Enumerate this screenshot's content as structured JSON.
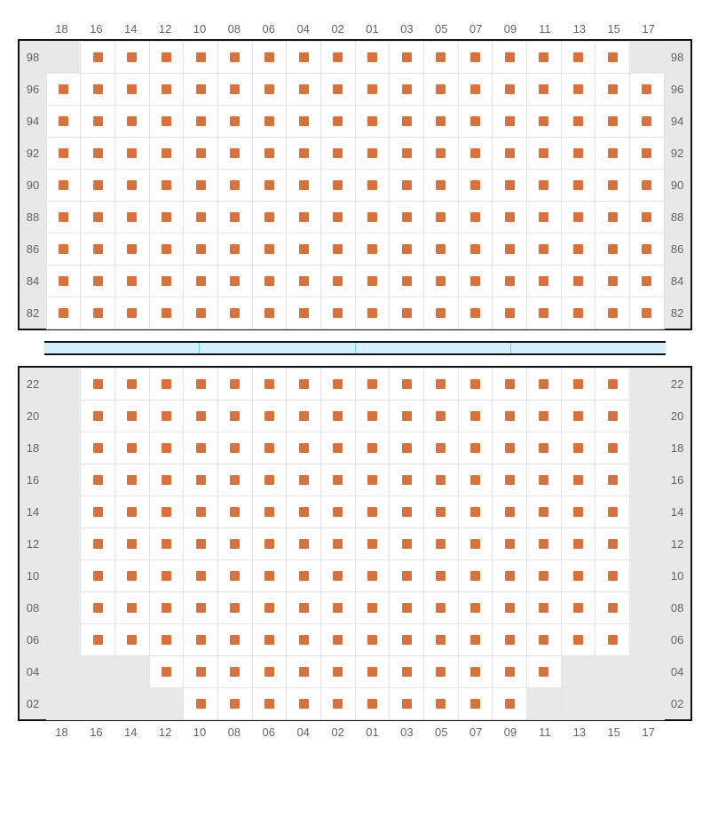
{
  "meta": {
    "type": "seating-chart",
    "columns": 18,
    "marker_color": "#d7713e",
    "filled_bg": "#ffffff",
    "empty_bg": "#e8e8e8",
    "border_color": "#e5e5e5",
    "outer_border_color": "#111111",
    "label_color": "#636363",
    "label_fontsize": 13,
    "divider_bg": "#d4f0fb",
    "divider_segments": 4
  },
  "column_labels": [
    "18",
    "16",
    "14",
    "12",
    "10",
    "08",
    "06",
    "04",
    "02",
    "01",
    "03",
    "05",
    "07",
    "09",
    "11",
    "13",
    "15",
    "17"
  ],
  "top_section": {
    "row_labels": [
      "98",
      "96",
      "94",
      "92",
      "90",
      "88",
      "86",
      "84",
      "82"
    ],
    "seats": [
      [
        0,
        1,
        1,
        1,
        1,
        1,
        1,
        1,
        1,
        1,
        1,
        1,
        1,
        1,
        1,
        1,
        1,
        0
      ],
      [
        1,
        1,
        1,
        1,
        1,
        1,
        1,
        1,
        1,
        1,
        1,
        1,
        1,
        1,
        1,
        1,
        1,
        1
      ],
      [
        1,
        1,
        1,
        1,
        1,
        1,
        1,
        1,
        1,
        1,
        1,
        1,
        1,
        1,
        1,
        1,
        1,
        1
      ],
      [
        1,
        1,
        1,
        1,
        1,
        1,
        1,
        1,
        1,
        1,
        1,
        1,
        1,
        1,
        1,
        1,
        1,
        1
      ],
      [
        1,
        1,
        1,
        1,
        1,
        1,
        1,
        1,
        1,
        1,
        1,
        1,
        1,
        1,
        1,
        1,
        1,
        1
      ],
      [
        1,
        1,
        1,
        1,
        1,
        1,
        1,
        1,
        1,
        1,
        1,
        1,
        1,
        1,
        1,
        1,
        1,
        1
      ],
      [
        1,
        1,
        1,
        1,
        1,
        1,
        1,
        1,
        1,
        1,
        1,
        1,
        1,
        1,
        1,
        1,
        1,
        1
      ],
      [
        1,
        1,
        1,
        1,
        1,
        1,
        1,
        1,
        1,
        1,
        1,
        1,
        1,
        1,
        1,
        1,
        1,
        1
      ],
      [
        1,
        1,
        1,
        1,
        1,
        1,
        1,
        1,
        1,
        1,
        1,
        1,
        1,
        1,
        1,
        1,
        1,
        1
      ]
    ]
  },
  "bottom_section": {
    "row_labels": [
      "22",
      "20",
      "18",
      "16",
      "14",
      "12",
      "10",
      "08",
      "06",
      "04",
      "02"
    ],
    "seats": [
      [
        0,
        1,
        1,
        1,
        1,
        1,
        1,
        1,
        1,
        1,
        1,
        1,
        1,
        1,
        1,
        1,
        1,
        0
      ],
      [
        0,
        1,
        1,
        1,
        1,
        1,
        1,
        1,
        1,
        1,
        1,
        1,
        1,
        1,
        1,
        1,
        1,
        0
      ],
      [
        0,
        1,
        1,
        1,
        1,
        1,
        1,
        1,
        1,
        1,
        1,
        1,
        1,
        1,
        1,
        1,
        1,
        0
      ],
      [
        0,
        1,
        1,
        1,
        1,
        1,
        1,
        1,
        1,
        1,
        1,
        1,
        1,
        1,
        1,
        1,
        1,
        0
      ],
      [
        0,
        1,
        1,
        1,
        1,
        1,
        1,
        1,
        1,
        1,
        1,
        1,
        1,
        1,
        1,
        1,
        1,
        0
      ],
      [
        0,
        1,
        1,
        1,
        1,
        1,
        1,
        1,
        1,
        1,
        1,
        1,
        1,
        1,
        1,
        1,
        1,
        0
      ],
      [
        0,
        1,
        1,
        1,
        1,
        1,
        1,
        1,
        1,
        1,
        1,
        1,
        1,
        1,
        1,
        1,
        1,
        0
      ],
      [
        0,
        1,
        1,
        1,
        1,
        1,
        1,
        1,
        1,
        1,
        1,
        1,
        1,
        1,
        1,
        1,
        1,
        0
      ],
      [
        0,
        1,
        1,
        1,
        1,
        1,
        1,
        1,
        1,
        1,
        1,
        1,
        1,
        1,
        1,
        1,
        1,
        0
      ],
      [
        0,
        0,
        0,
        1,
        1,
        1,
        1,
        1,
        1,
        1,
        1,
        1,
        1,
        1,
        1,
        0,
        0,
        0
      ],
      [
        0,
        0,
        0,
        0,
        1,
        1,
        1,
        1,
        1,
        1,
        1,
        1,
        1,
        1,
        0,
        0,
        0,
        0
      ]
    ]
  }
}
